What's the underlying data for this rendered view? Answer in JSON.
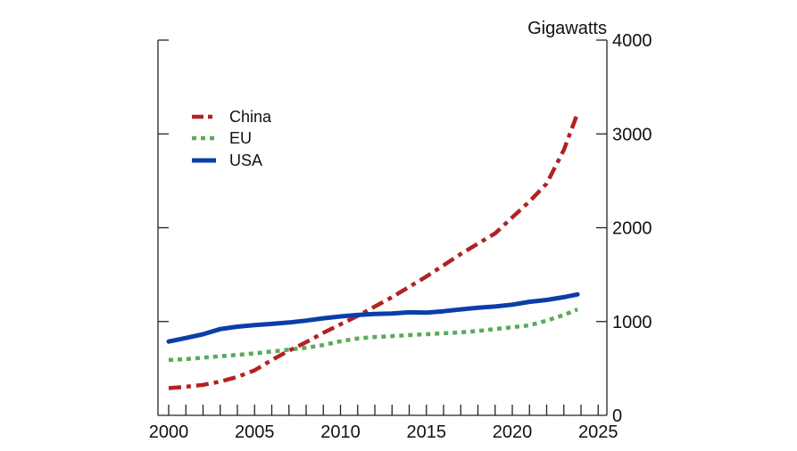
{
  "chart_data": {
    "type": "line",
    "title": "",
    "ylabel": "Gigawatts",
    "xlabel": "",
    "xlim": [
      1999.4,
      2025.6
    ],
    "ylim": [
      0,
      4000
    ],
    "x_ticks_major": [
      2000,
      2005,
      2010,
      2015,
      2020,
      2025
    ],
    "x_tick_labels": [
      "2000",
      "2005",
      "2010",
      "2015",
      "2020",
      "2025"
    ],
    "x_ticks_minor_every": 1,
    "y_ticks": [
      0,
      1000,
      2000,
      3000,
      4000
    ],
    "y_tick_labels": [
      "0",
      "1000",
      "2000",
      "3000",
      "4000"
    ],
    "y_axis_side": "right",
    "grid": false,
    "legend_position": "top-left",
    "x": [
      2000,
      2001,
      2002,
      2003,
      2004,
      2005,
      2006,
      2007,
      2008,
      2009,
      2010,
      2011,
      2012,
      2013,
      2014,
      2015,
      2016,
      2017,
      2018,
      2019,
      2020,
      2021,
      2022,
      2023,
      2023.8
    ],
    "series": [
      {
        "name": "China",
        "color": "#B22222",
        "style": "dash-dot",
        "values": [
          290,
          305,
          325,
          360,
          410,
          480,
          590,
          690,
          780,
          880,
          970,
          1060,
          1160,
          1260,
          1370,
          1480,
          1600,
          1720,
          1830,
          1940,
          2110,
          2280,
          2470,
          2830,
          3220
        ]
      },
      {
        "name": "EU",
        "color": "#5BAA5B",
        "style": "dotted",
        "values": [
          590,
          600,
          615,
          630,
          645,
          660,
          680,
          700,
          720,
          750,
          790,
          820,
          835,
          845,
          855,
          865,
          875,
          885,
          900,
          920,
          940,
          960,
          1010,
          1070,
          1130
        ]
      },
      {
        "name": "USA",
        "color": "#0A3EA8",
        "style": "solid",
        "values": [
          787,
          825,
          865,
          920,
          945,
          962,
          975,
          990,
          1010,
          1035,
          1055,
          1070,
          1080,
          1085,
          1098,
          1095,
          1110,
          1130,
          1148,
          1160,
          1180,
          1210,
          1230,
          1260,
          1289
        ]
      }
    ]
  }
}
